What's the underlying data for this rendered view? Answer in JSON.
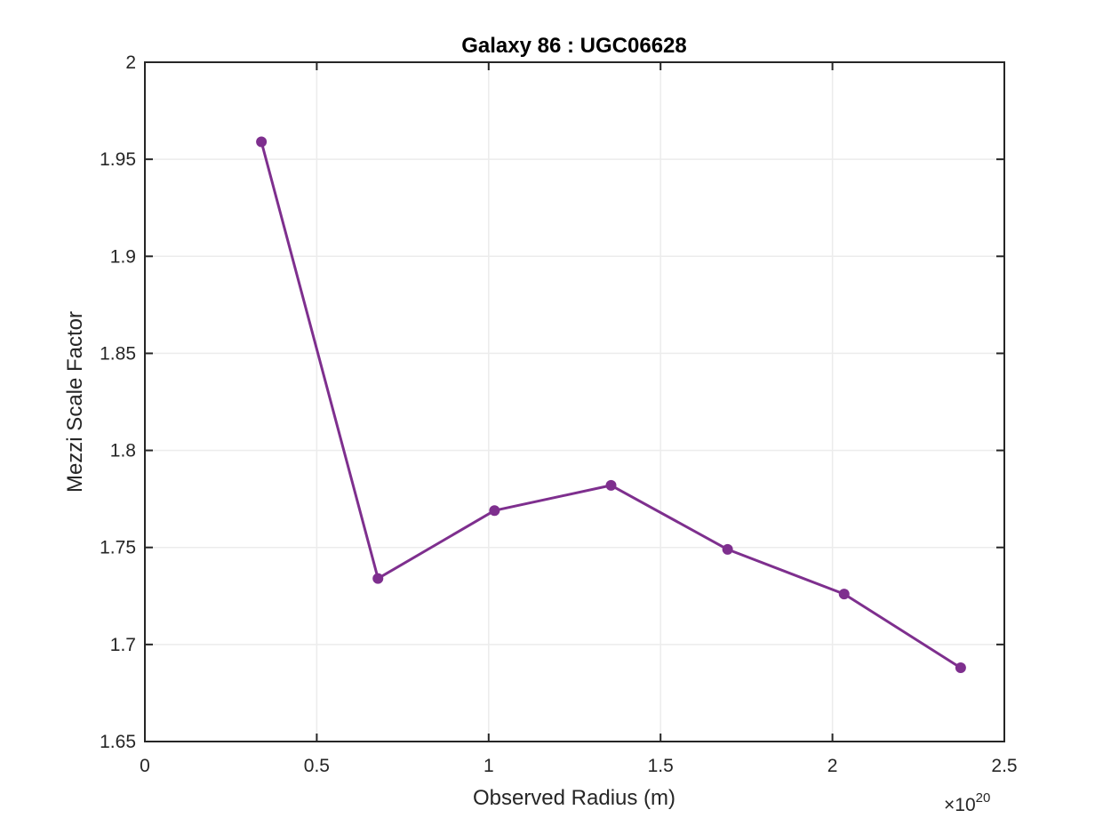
{
  "chart_data": {
    "type": "line",
    "title": "Galaxy 86 : UGC06628",
    "xlabel": "Observed Radius (m)",
    "ylabel": "Mezzi Scale Factor",
    "x_exponent_label": {
      "base": "×10",
      "power": "20"
    },
    "xlim": [
      0,
      2.5
    ],
    "ylim": [
      1.65,
      2.0
    ],
    "xticks": [
      0,
      0.5,
      1,
      1.5,
      2,
      2.5
    ],
    "xtick_labels": [
      "0",
      "0.5",
      "1",
      "1.5",
      "2",
      "2.5"
    ],
    "yticks": [
      1.65,
      1.7,
      1.75,
      1.8,
      1.85,
      1.9,
      1.95,
      2.0
    ],
    "ytick_labels": [
      "1.65",
      "1.7",
      "1.75",
      "1.8",
      "1.85",
      "1.9",
      "1.95",
      "2"
    ],
    "grid": true,
    "series": [
      {
        "color": "#7e2f8e",
        "x": [
          0.339,
          0.678,
          1.017,
          1.356,
          1.695,
          2.034,
          2.373
        ],
        "y": [
          1.959,
          1.734,
          1.769,
          1.782,
          1.749,
          1.726,
          1.688
        ]
      }
    ]
  }
}
